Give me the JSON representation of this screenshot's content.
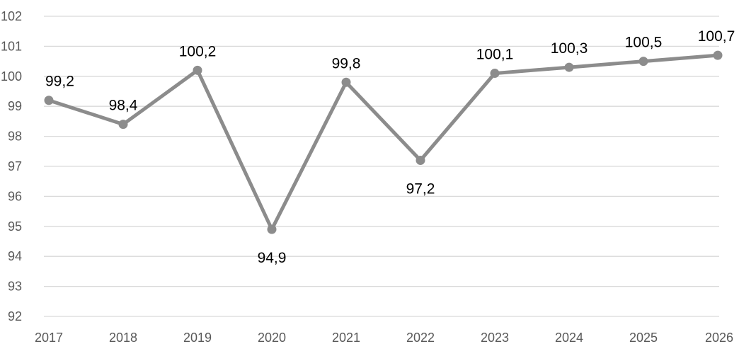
{
  "chart_data": {
    "type": "line",
    "categories": [
      "2017",
      "2018",
      "2019",
      "2020",
      "2021",
      "2022",
      "2023",
      "2024",
      "2025",
      "2026"
    ],
    "series": [
      {
        "values": [
          99.2,
          98.4,
          100.2,
          94.9,
          99.8,
          97.2,
          100.1,
          100.3,
          100.5,
          100.7
        ],
        "labels": [
          "99,2",
          "98,4",
          "100,2",
          "94,9",
          "99,8",
          "97,2",
          "100,1",
          "100,3",
          "100,5",
          "100,7"
        ],
        "label_positions": [
          "above",
          "above",
          "above",
          "below",
          "above",
          "below",
          "above",
          "above",
          "above",
          "above"
        ]
      }
    ],
    "yticks": [
      "92",
      "93",
      "94",
      "95",
      "96",
      "97",
      "98",
      "99",
      "100",
      "101",
      "102"
    ],
    "ylim": [
      92,
      102
    ],
    "ystep": 1,
    "grid": true,
    "legend": "none",
    "colors": {
      "line": "#8c8c8c",
      "grid": "#d9d9d9",
      "tick_text": "#595959",
      "label_text": "#000000"
    }
  }
}
